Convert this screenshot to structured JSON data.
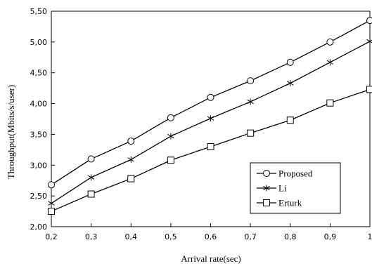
{
  "chart_data": {
    "type": "line",
    "xlabel": "Arrival rate(sec)",
    "ylabel": "Throughput(Mbits/s/user)",
    "x": [
      0.2,
      0.3,
      0.4,
      0.5,
      0.6,
      0.7,
      0.8,
      0.9,
      1
    ],
    "x_tick_labels": [
      "0,2",
      "0,3",
      "0,4",
      "0,5",
      "0,6",
      "0,7",
      "0,8",
      "0,9",
      "1"
    ],
    "y_ticks": [
      2.0,
      2.5,
      3.0,
      3.5,
      4.0,
      4.5,
      5.0,
      5.5
    ],
    "y_tick_labels": [
      "2,00",
      "2,50",
      "3,00",
      "3,50",
      "4,00",
      "4,50",
      "5,00",
      "5,50"
    ],
    "xlim": [
      0.2,
      1
    ],
    "ylim": [
      2.0,
      5.5
    ],
    "grid": false,
    "legend_position": "bottom-right",
    "series": [
      {
        "name": "Proposed",
        "marker": "circle",
        "color": "#000000",
        "values": [
          2.68,
          3.1,
          3.39,
          3.77,
          4.1,
          4.37,
          4.67,
          5.0,
          5.35
        ]
      },
      {
        "name": "Li",
        "marker": "asterisk",
        "color": "#000000",
        "values": [
          2.38,
          2.8,
          3.09,
          3.47,
          3.76,
          4.03,
          4.33,
          4.67,
          5.01
        ]
      },
      {
        "name": "Erturk",
        "marker": "square",
        "color": "#000000",
        "values": [
          2.25,
          2.53,
          2.78,
          3.08,
          3.3,
          3.52,
          3.73,
          4.01,
          4.23
        ]
      }
    ]
  }
}
